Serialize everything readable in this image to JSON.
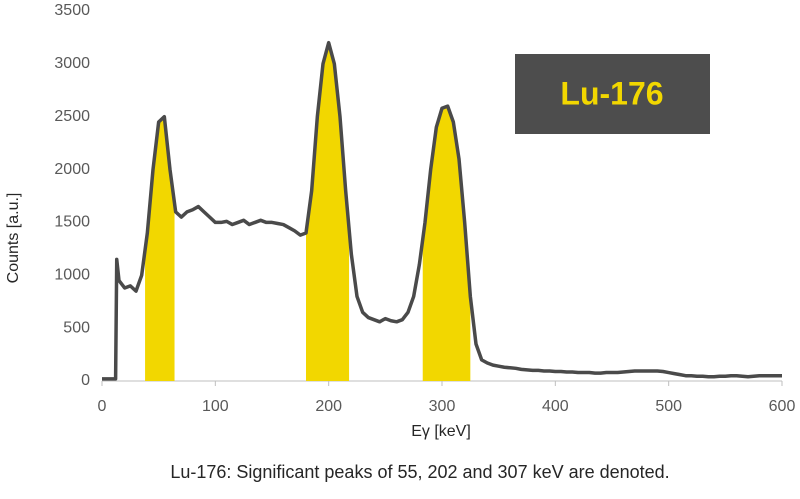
{
  "chart_data": {
    "type": "line",
    "x_label": "Eγ [keV]",
    "y_label": "Counts [a.u.]",
    "annotation": "Lu-176",
    "caption": "Lu-176: Significant peaks of 55, 202 and 307 keV are denoted.",
    "xlim": [
      0,
      600
    ],
    "xticks": [
      0,
      100,
      200,
      300,
      400,
      500,
      600
    ],
    "ylim": [
      0,
      3500
    ],
    "yticks": [
      0,
      500,
      1000,
      1500,
      2000,
      2500,
      3000,
      3500
    ],
    "grid": false,
    "shaded_ranges": [
      [
        38,
        64
      ],
      [
        180,
        218
      ],
      [
        283,
        325
      ]
    ],
    "shade_color": "#f2d700",
    "x": [
      0,
      5,
      10,
      12,
      13,
      15,
      20,
      25,
      30,
      35,
      40,
      45,
      50,
      55,
      60,
      65,
      70,
      75,
      80,
      85,
      90,
      95,
      100,
      105,
      110,
      115,
      120,
      125,
      130,
      135,
      140,
      145,
      150,
      155,
      160,
      165,
      170,
      175,
      180,
      185,
      190,
      195,
      200,
      205,
      210,
      215,
      220,
      225,
      230,
      235,
      240,
      245,
      250,
      255,
      260,
      265,
      270,
      275,
      280,
      285,
      290,
      295,
      300,
      305,
      310,
      315,
      320,
      325,
      330,
      335,
      340,
      345,
      350,
      355,
      360,
      365,
      370,
      375,
      380,
      385,
      390,
      395,
      400,
      405,
      410,
      415,
      420,
      425,
      430,
      435,
      440,
      445,
      450,
      455,
      460,
      465,
      470,
      475,
      480,
      485,
      490,
      495,
      500,
      505,
      510,
      515,
      520,
      525,
      530,
      535,
      540,
      545,
      550,
      555,
      560,
      565,
      570,
      575,
      580,
      585,
      590,
      595,
      600
    ],
    "series": [
      {
        "color": "#4a4a4a",
        "values": [
          20,
          20,
          20,
          20,
          1150,
          950,
          880,
          900,
          850,
          1000,
          1400,
          2000,
          2450,
          2500,
          2000,
          1600,
          1550,
          1600,
          1620,
          1650,
          1600,
          1550,
          1500,
          1500,
          1510,
          1480,
          1500,
          1520,
          1480,
          1500,
          1520,
          1500,
          1500,
          1490,
          1480,
          1450,
          1420,
          1380,
          1400,
          1800,
          2500,
          3000,
          3200,
          3000,
          2500,
          1800,
          1200,
          800,
          650,
          600,
          580,
          560,
          590,
          570,
          560,
          580,
          650,
          800,
          1100,
          1500,
          2000,
          2400,
          2580,
          2600,
          2450,
          2100,
          1500,
          800,
          350,
          200,
          170,
          150,
          140,
          130,
          125,
          120,
          110,
          105,
          100,
          100,
          95,
          95,
          90,
          90,
          85,
          85,
          80,
          80,
          80,
          75,
          75,
          80,
          80,
          80,
          85,
          90,
          95,
          95,
          95,
          95,
          95,
          90,
          80,
          70,
          60,
          50,
          50,
          45,
          45,
          40,
          40,
          45,
          45,
          50,
          50,
          45,
          40,
          45,
          50,
          50,
          50,
          50,
          50
        ]
      }
    ]
  }
}
